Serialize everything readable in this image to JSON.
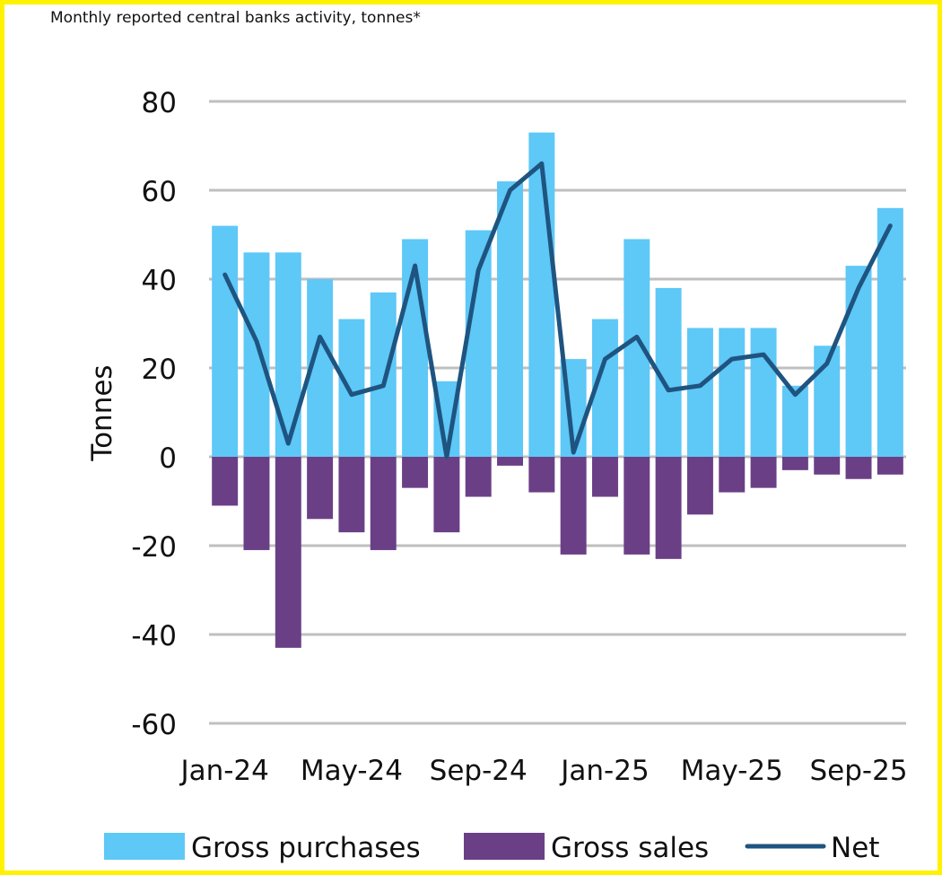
{
  "chart_data": {
    "type": "bar",
    "title": "Monthly reported central banks activity, tonnes*",
    "xlabel": "",
    "ylabel": "Tonnes",
    "ylim": [
      -60,
      80
    ],
    "yticks": [
      80,
      60,
      40,
      20,
      0,
      -20,
      -40,
      -60
    ],
    "x_tick_labels": [
      "Jan-24",
      "May-24",
      "Sep-24",
      "Jan-25",
      "May-25",
      "Sep-25"
    ],
    "x_tick_months": [
      "2024-01",
      "2024-05",
      "2024-09",
      "2025-01",
      "2025-05",
      "2025-09"
    ],
    "categories": [
      "2024-01",
      "2024-02",
      "2024-03",
      "2024-04",
      "2024-05",
      "2024-06",
      "2024-07",
      "2024-08",
      "2024-09",
      "2024-10",
      "2024-11",
      "2024-12",
      "2025-01",
      "2025-02",
      "2025-03",
      "2025-04",
      "2025-05",
      "2025-06",
      "2025-07",
      "2025-08",
      "2025-09",
      "2025-10"
    ],
    "grid": true,
    "legend": "bottom",
    "colors": {
      "purchases": "#5ec8f7",
      "sales": "#6b3f86",
      "net": "#1f5480",
      "grid": "#bfbfbf"
    },
    "series": [
      {
        "name": "Gross purchases",
        "kind": "bar",
        "values": [
          52,
          46,
          46,
          40,
          31,
          37,
          49,
          17,
          51,
          62,
          73,
          22,
          31,
          49,
          38,
          29,
          29,
          29,
          16,
          25,
          43,
          56
        ]
      },
      {
        "name": "Gross sales",
        "kind": "bar",
        "values": [
          -11,
          -21,
          -43,
          -14,
          -17,
          -21,
          -7,
          -17,
          -9,
          -2,
          -8,
          -22,
          -9,
          -22,
          -23,
          -13,
          -8,
          -7,
          -3,
          -4,
          -5,
          -4
        ]
      },
      {
        "name": "Net",
        "kind": "line",
        "values": [
          41,
          26,
          3,
          27,
          14,
          16,
          43,
          0,
          42,
          60,
          66,
          1,
          22,
          27,
          15,
          16,
          22,
          23,
          14,
          21,
          38,
          52
        ]
      }
    ]
  }
}
